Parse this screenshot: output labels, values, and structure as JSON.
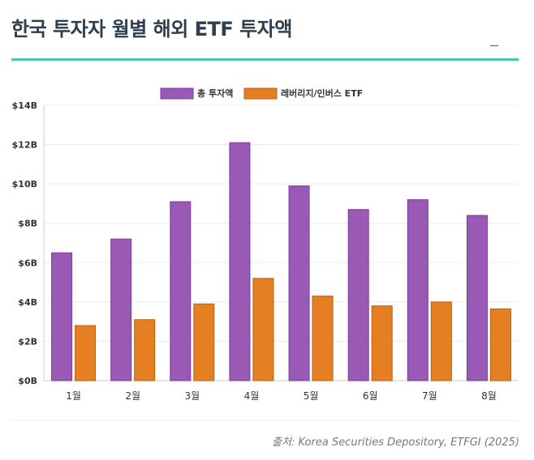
{
  "header": {
    "title": "한국 투자자 월별 해외 ETF 투자액"
  },
  "footer": {
    "source": "출처: Korea Securities Depository, ETFGI (2025)"
  },
  "colors": {
    "accent_rule": "#48c9b0",
    "title": "#2c3e50"
  },
  "chart_data": {
    "type": "bar",
    "title": "",
    "xlabel": "",
    "ylabel": "",
    "categories": [
      "1월",
      "2월",
      "3월",
      "4월",
      "5월",
      "6월",
      "7월",
      "8월"
    ],
    "series": [
      {
        "name": "총 투자액",
        "color": "#9b59b6",
        "stroke": "#7d3c98",
        "values": [
          6.5,
          7.2,
          9.1,
          12.1,
          9.9,
          8.7,
          9.2,
          8.4
        ]
      },
      {
        "name": "레버리지/인버스 ETF",
        "color": "#e67e22",
        "stroke": "#b9600f",
        "values": [
          2.8,
          3.1,
          3.9,
          5.2,
          4.3,
          3.8,
          4.0,
          3.65
        ]
      }
    ],
    "ylim": [
      0,
      14
    ],
    "yticks": [
      "$0B",
      "$2B",
      "$4B",
      "$6B",
      "$8B",
      "$10B",
      "$12B",
      "$14B"
    ],
    "grid": true,
    "legend": "top-center"
  }
}
